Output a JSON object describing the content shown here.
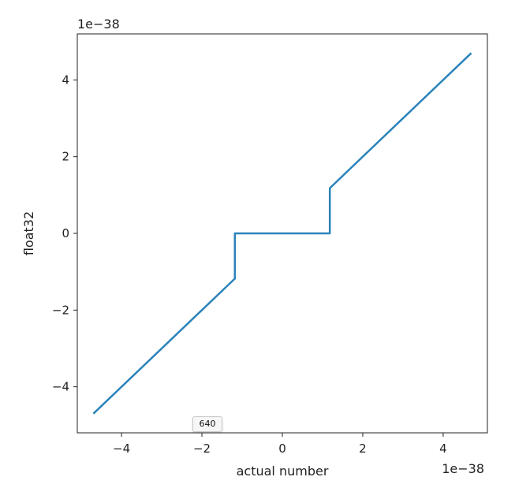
{
  "chart_data": {
    "type": "line",
    "title": "",
    "xlabel": "actual number",
    "ylabel": "float32",
    "x_offset_label": "1e−38",
    "y_offset_label": "1e−38",
    "xlim": [
      -5.1,
      5.1
    ],
    "ylim": [
      -5.2,
      5.2
    ],
    "xticks": [
      -4,
      -2,
      0,
      2,
      4
    ],
    "yticks": [
      -4,
      -2,
      0,
      2,
      4
    ],
    "xtick_labels": [
      "−4",
      "−2",
      "0",
      "2",
      "4"
    ],
    "ytick_labels": [
      "−4",
      "−2",
      "0",
      "2",
      "4"
    ],
    "grid": false,
    "series": [
      {
        "color": "#2b83ba",
        "x": [
          -4.7,
          -1.18,
          -1.18,
          1.18,
          1.18,
          4.7
        ],
        "y": [
          -4.7,
          -1.18,
          0,
          0,
          1.18,
          4.7
        ]
      }
    ]
  },
  "overlay": {
    "badge_text": "640"
  }
}
